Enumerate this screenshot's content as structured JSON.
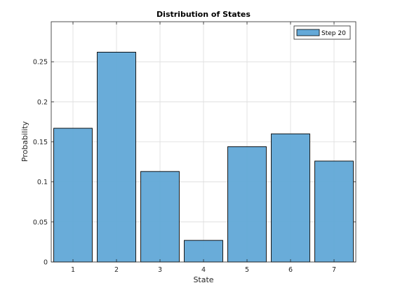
{
  "chart_data": {
    "type": "bar",
    "title": "Distribution of States",
    "xlabel": "State",
    "ylabel": "Probability",
    "categories": [
      "1",
      "2",
      "3",
      "4",
      "5",
      "6",
      "7"
    ],
    "series": [
      {
        "name": "Step 20",
        "values": [
          0.167,
          0.262,
          0.113,
          0.027,
          0.144,
          0.16,
          0.126
        ],
        "color": "#64a9d8"
      }
    ],
    "ylim": [
      0,
      0.3
    ],
    "yticks": [
      0,
      0.05,
      0.1,
      0.15,
      0.2,
      0.25
    ],
    "ytick_labels": [
      "0",
      "0.05",
      "0.1",
      "0.15",
      "0.2",
      "0.25"
    ],
    "grid": true,
    "legend_position": "top-right"
  }
}
